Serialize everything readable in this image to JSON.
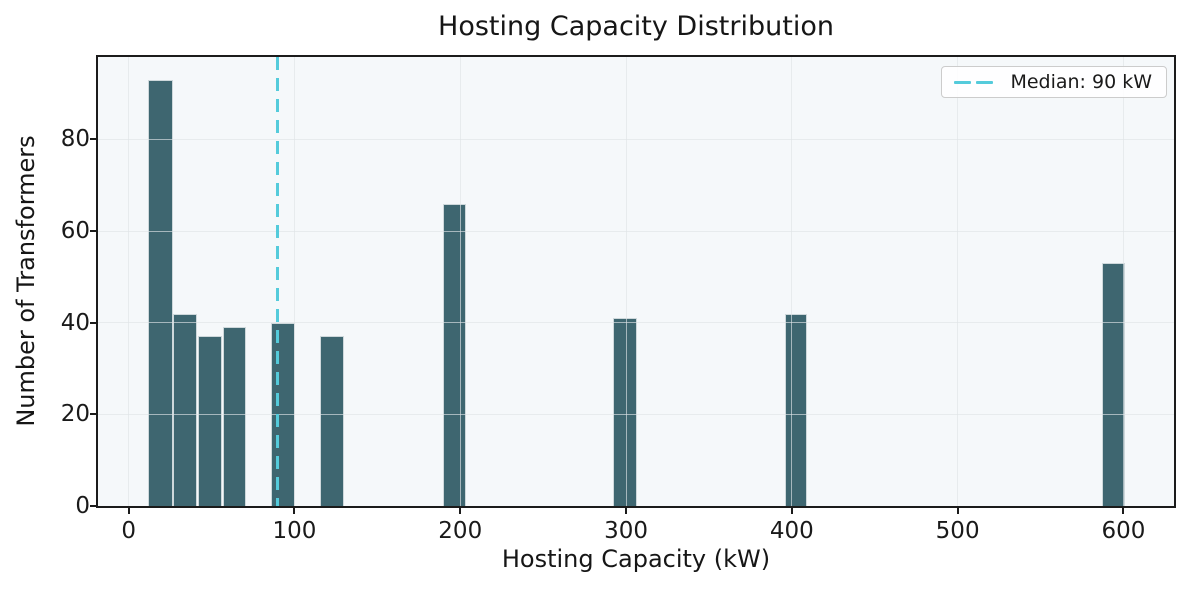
{
  "chart_data": {
    "type": "bar",
    "title": "Hosting Capacity Distribution",
    "xlabel": "Hosting Capacity (kW)",
    "ylabel": "Number of Transformers",
    "xlim": [
      -18.5,
      630.5
    ],
    "ylim": [
      0,
      98
    ],
    "x_ticks": [
      0,
      100,
      200,
      300,
      400,
      500,
      600
    ],
    "y_ticks": [
      0,
      20,
      40,
      60,
      80
    ],
    "grid": true,
    "legend_position": "upper right",
    "bars": [
      {
        "from": 11.9,
        "to": 26.5,
        "count": 93
      },
      {
        "from": 26.8,
        "to": 41.1,
        "count": 42
      },
      {
        "from": 41.7,
        "to": 56.4,
        "count": 37
      },
      {
        "from": 56.8,
        "to": 70.8,
        "count": 39
      },
      {
        "from": 85.9,
        "to": 100.4,
        "count": 40
      },
      {
        "from": 115.4,
        "to": 129.7,
        "count": 37
      },
      {
        "from": 189.6,
        "to": 203.3,
        "count": 66
      },
      {
        "from": 292.3,
        "to": 306.4,
        "count": 41
      },
      {
        "from": 396.0,
        "to": 409.2,
        "count": 42
      },
      {
        "from": 587.1,
        "to": 601.2,
        "count": 53
      }
    ],
    "median_line": {
      "value": 90,
      "label": "Median: 90 kW",
      "style": "dashed"
    },
    "colors": {
      "bar": "#3e6670",
      "bar_edge": "#ffffff",
      "median": "#54cbdb",
      "plot_bg": "#f5f8fa",
      "grid": "#dfe3e7",
      "spine": "#1b1b1b",
      "text": "#1a1a1a",
      "legend_bg": "#ffffff",
      "legend_border": "#cccccc"
    }
  }
}
